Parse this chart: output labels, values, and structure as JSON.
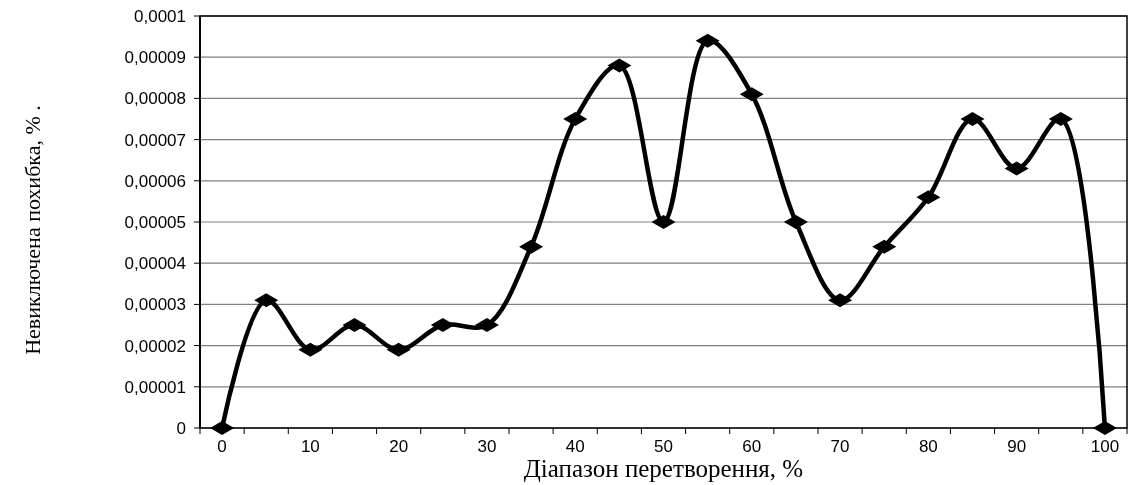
{
  "chart_data": {
    "type": "line",
    "xlabel": "Діапазон перетворення, %",
    "ylabel": "Невиключена похибка, % .",
    "categories": [
      "0",
      null,
      "10",
      null,
      "20",
      null,
      "30",
      null,
      "40",
      null,
      "50",
      null,
      "60",
      null,
      "70",
      null,
      "80",
      null,
      "90",
      null,
      "100"
    ],
    "series": [
      {
        "color": "#000000",
        "values": [
          0,
          3.1e-05,
          1.9e-05,
          2.5e-05,
          1.9e-05,
          2.5e-05,
          2.5e-05,
          4.4e-05,
          7.5e-05,
          8.8e-05,
          5e-05,
          9.4e-05,
          8.1e-05,
          5e-05,
          3.1e-05,
          4.4e-05,
          5.6e-05,
          7.5e-05,
          6.3e-05,
          7.5e-05,
          0
        ]
      }
    ],
    "ylim": [
      0,
      0.0001
    ],
    "yticks": [
      0,
      {
        "value": 1e-05,
        "label": "0,00001"
      },
      {
        "value": 2e-05,
        "label": "0,00002"
      },
      {
        "value": 3e-05,
        "label": "0,00003"
      },
      {
        "value": 4e-05,
        "label": "0,00004"
      },
      {
        "value": 5e-05,
        "label": "0,00005"
      },
      {
        "value": 6e-05,
        "label": "0,00006"
      },
      {
        "value": 7e-05,
        "label": "0,00007"
      },
      {
        "value": 8e-05,
        "label": "0,00008"
      },
      {
        "value": 9e-05,
        "label": "0,00009"
      },
      {
        "value": 0.0001,
        "label": "0,0001"
      }
    ],
    "grid": "y",
    "marker": "diamond",
    "line_style": "solid"
  }
}
